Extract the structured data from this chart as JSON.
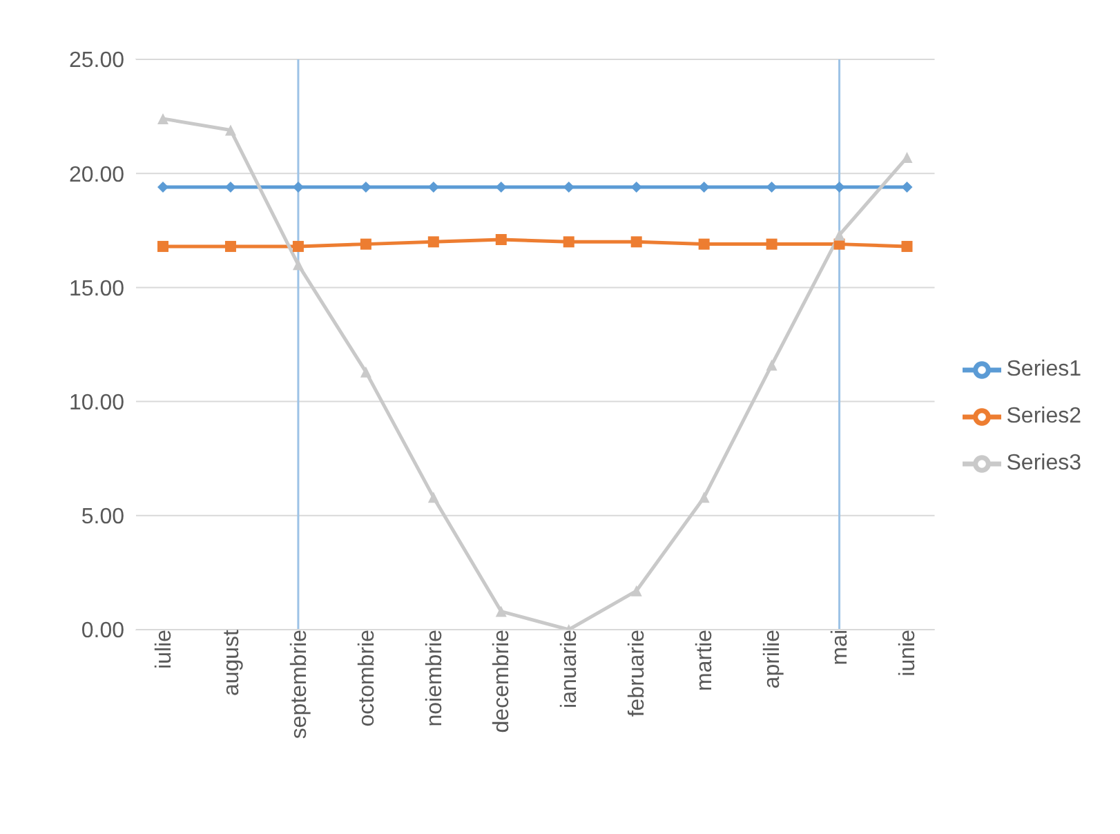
{
  "chart_data": {
    "type": "line",
    "categories": [
      "iulie",
      "august",
      "septembrie",
      "octombrie",
      "noiembrie",
      "decembrie",
      "ianuarie",
      "februarie",
      "martie",
      "aprilie",
      "mai",
      "iunie"
    ],
    "series": [
      {
        "name": "Series1",
        "color": "#5b9bd5",
        "marker": "diamond",
        "values": [
          19.4,
          19.4,
          19.4,
          19.4,
          19.4,
          19.4,
          19.4,
          19.4,
          19.4,
          19.4,
          19.4,
          19.4
        ]
      },
      {
        "name": "Series2",
        "color": "#ed7d31",
        "marker": "square",
        "values": [
          16.8,
          16.8,
          16.8,
          16.9,
          17.0,
          17.1,
          17.0,
          17.0,
          16.9,
          16.9,
          16.9,
          16.8
        ]
      },
      {
        "name": "Series3",
        "color": "#c9c9c9",
        "marker": "triangle",
        "values": [
          22.4,
          21.9,
          16.0,
          11.3,
          5.8,
          0.8,
          0.0,
          1.7,
          5.8,
          11.6,
          17.3,
          20.7
        ]
      }
    ],
    "ylim": [
      0,
      25
    ],
    "yticks": [
      {
        "value": 0,
        "label": "0.00"
      },
      {
        "value": 5,
        "label": "5.00"
      },
      {
        "value": 10,
        "label": "10.00"
      },
      {
        "value": 15,
        "label": "15.00"
      },
      {
        "value": 20,
        "label": "20.00"
      },
      {
        "value": 25,
        "label": "25.00"
      }
    ],
    "ref_lines": [
      {
        "axis": "x",
        "value": "septembrie",
        "color": "#9dc3e6"
      },
      {
        "axis": "x",
        "value": "mai",
        "color": "#9dc3e6"
      }
    ],
    "grid": "y",
    "legend": "right"
  }
}
